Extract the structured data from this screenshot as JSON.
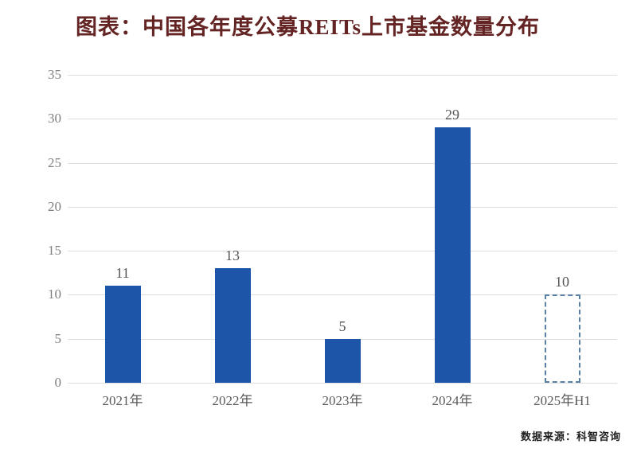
{
  "title": {
    "text": "图表：中国各年度公募REITs上市基金数量分布"
  },
  "source": {
    "text": "数据来源：科智咨询"
  },
  "colors": {
    "bar": "#1D56A8",
    "forecast_outline": "#5B80A5",
    "gridline": "#DEDEDE",
    "title_text": "#632423",
    "ytick_text": "#7F7F7F",
    "xtick_text": "#595959",
    "value_text": "#555555",
    "source_text": "#1F1F1F"
  },
  "chart_data": {
    "type": "bar",
    "title": "图表：中国各年度公募REITs上市基金数量分布",
    "categories": [
      "2021年",
      "2022年",
      "2023年",
      "2024年",
      "2025年H1"
    ],
    "values": [
      11,
      13,
      5,
      29,
      10
    ],
    "data_labels": [
      "11",
      "13",
      "5",
      "29",
      "10"
    ],
    "bar_styles": [
      "solid",
      "solid",
      "solid",
      "solid",
      "dashed-outline"
    ],
    "xlabel": "",
    "ylabel": "",
    "ylim": [
      0,
      35
    ],
    "yticks": [
      0,
      5,
      10,
      15,
      20,
      25,
      30,
      35
    ],
    "grid": true,
    "legend": null,
    "source": "数据来源：科智咨询"
  }
}
